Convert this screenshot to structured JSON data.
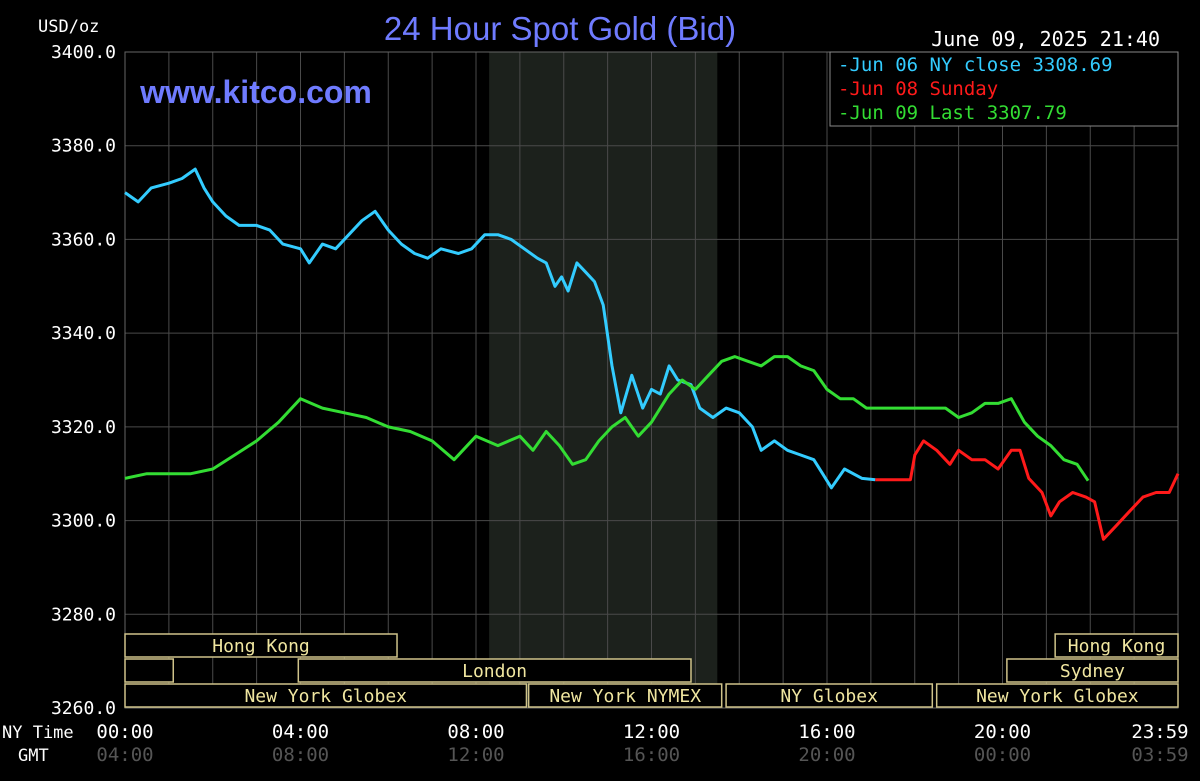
{
  "chart_data": {
    "type": "line",
    "title": "24 Hour Spot Gold (Bid)",
    "watermark": "www.kitco.com",
    "timestamp": "June 09, 2025 21:40",
    "ylabel": "USD/oz",
    "ylim": [
      3260,
      3400
    ],
    "yticks": [
      "3400.0",
      "3380.0",
      "3360.0",
      "3340.0",
      "3320.0",
      "3300.0",
      "3280.0",
      "3260.0"
    ],
    "x_axis_name": "NY Time",
    "x2_axis_name": "GMT",
    "xlim": [
      0,
      24
    ],
    "xticks_ny": [
      "00:00",
      "04:00",
      "08:00",
      "12:00",
      "16:00",
      "20:00",
      "23:59"
    ],
    "xticks_gmt": [
      "04:00",
      "08:00",
      "12:00",
      "16:00",
      "20:00",
      "00:00",
      "03:59"
    ],
    "xtick_hours": [
      0,
      4,
      8,
      12,
      16,
      20,
      24
    ],
    "grid": true,
    "shaded_period": [
      8.3,
      13.5
    ],
    "legend_position": "top-right",
    "series": [
      {
        "name": "Jun 06 NY close 3308.69",
        "color": "#33ccff",
        "points": [
          [
            0,
            3370
          ],
          [
            0.3,
            3368
          ],
          [
            0.6,
            3371
          ],
          [
            1,
            3372
          ],
          [
            1.3,
            3373
          ],
          [
            1.6,
            3375
          ],
          [
            1.8,
            3371
          ],
          [
            2,
            3368
          ],
          [
            2.3,
            3365
          ],
          [
            2.6,
            3363
          ],
          [
            3,
            3363
          ],
          [
            3.3,
            3362
          ],
          [
            3.6,
            3359
          ],
          [
            4,
            3358
          ],
          [
            4.2,
            3355
          ],
          [
            4.5,
            3359
          ],
          [
            4.8,
            3358
          ],
          [
            5.1,
            3361
          ],
          [
            5.4,
            3364
          ],
          [
            5.7,
            3366
          ],
          [
            6,
            3362
          ],
          [
            6.3,
            3359
          ],
          [
            6.6,
            3357
          ],
          [
            6.9,
            3356
          ],
          [
            7.2,
            3358
          ],
          [
            7.6,
            3357
          ],
          [
            7.9,
            3358
          ],
          [
            8.2,
            3361
          ],
          [
            8.5,
            3361
          ],
          [
            8.8,
            3360
          ],
          [
            9.1,
            3358
          ],
          [
            9.4,
            3356
          ],
          [
            9.6,
            3355
          ],
          [
            9.8,
            3350
          ],
          [
            9.95,
            3352
          ],
          [
            10.1,
            3349
          ],
          [
            10.3,
            3355
          ],
          [
            10.5,
            3353
          ],
          [
            10.7,
            3351
          ],
          [
            10.9,
            3346
          ],
          [
            11.1,
            3333
          ],
          [
            11.3,
            3323
          ],
          [
            11.55,
            3331
          ],
          [
            11.8,
            3324
          ],
          [
            12,
            3328
          ],
          [
            12.2,
            3327
          ],
          [
            12.4,
            3333
          ],
          [
            12.6,
            3330
          ],
          [
            12.9,
            3329
          ],
          [
            13.1,
            3324
          ],
          [
            13.4,
            3322
          ],
          [
            13.7,
            3324
          ],
          [
            14,
            3323
          ],
          [
            14.3,
            3320
          ],
          [
            14.5,
            3315
          ],
          [
            14.8,
            3317
          ],
          [
            15.1,
            3315
          ],
          [
            15.4,
            3314
          ],
          [
            15.7,
            3313
          ],
          [
            15.9,
            3310
          ],
          [
            16.1,
            3307
          ],
          [
            16.4,
            3311
          ],
          [
            16.8,
            3309
          ],
          [
            17.1,
            3308.7
          ]
        ]
      },
      {
        "name": "Jun 08 Sunday",
        "color": "#ff1a1a",
        "points": [
          [
            17.1,
            3308.7
          ],
          [
            17.9,
            3308.7
          ],
          [
            18,
            3314
          ],
          [
            18.2,
            3317
          ],
          [
            18.5,
            3315
          ],
          [
            18.8,
            3312
          ],
          [
            19,
            3315
          ],
          [
            19.3,
            3313
          ],
          [
            19.6,
            3313
          ],
          [
            19.9,
            3311
          ],
          [
            20.2,
            3315
          ],
          [
            20.4,
            3315
          ],
          [
            20.6,
            3309
          ],
          [
            20.9,
            3306
          ],
          [
            21.1,
            3301
          ],
          [
            21.3,
            3304
          ],
          [
            21.6,
            3306
          ],
          [
            21.9,
            3305
          ],
          [
            22.1,
            3304
          ],
          [
            22.3,
            3296
          ],
          [
            22.6,
            3299
          ],
          [
            22.9,
            3302
          ],
          [
            23.2,
            3305
          ],
          [
            23.5,
            3306
          ],
          [
            23.8,
            3306
          ],
          [
            24,
            3310
          ]
        ]
      },
      {
        "name": "Jun 09 Last 3307.79",
        "color": "#33dd33",
        "points": [
          [
            0,
            3309
          ],
          [
            0.5,
            3310
          ],
          [
            1,
            3310
          ],
          [
            1.5,
            3310
          ],
          [
            2,
            3311
          ],
          [
            2.5,
            3314
          ],
          [
            3,
            3317
          ],
          [
            3.5,
            3321
          ],
          [
            4,
            3326
          ],
          [
            4.5,
            3324
          ],
          [
            5,
            3323
          ],
          [
            5.5,
            3322
          ],
          [
            6,
            3320
          ],
          [
            6.5,
            3319
          ],
          [
            7,
            3317
          ],
          [
            7.5,
            3313
          ],
          [
            8,
            3318
          ],
          [
            8.5,
            3316
          ],
          [
            9,
            3318
          ],
          [
            9.3,
            3315
          ],
          [
            9.6,
            3319
          ],
          [
            9.9,
            3316
          ],
          [
            10.2,
            3312
          ],
          [
            10.5,
            3313
          ],
          [
            10.8,
            3317
          ],
          [
            11.1,
            3320
          ],
          [
            11.4,
            3322
          ],
          [
            11.7,
            3318
          ],
          [
            12,
            3321
          ],
          [
            12.4,
            3327
          ],
          [
            12.7,
            3330
          ],
          [
            13,
            3328
          ],
          [
            13.3,
            3331
          ],
          [
            13.6,
            3334
          ],
          [
            13.9,
            3335
          ],
          [
            14.2,
            3334
          ],
          [
            14.5,
            3333
          ],
          [
            14.8,
            3335
          ],
          [
            15.1,
            3335
          ],
          [
            15.4,
            3333
          ],
          [
            15.7,
            3332
          ],
          [
            16,
            3328
          ],
          [
            16.3,
            3326
          ],
          [
            16.6,
            3326
          ],
          [
            16.9,
            3324
          ],
          [
            17.2,
            3324
          ],
          [
            17.5,
            3324
          ],
          [
            17.8,
            3324
          ],
          [
            18.1,
            3324
          ],
          [
            18.4,
            3324
          ],
          [
            18.7,
            3324
          ],
          [
            19,
            3322
          ],
          [
            19.3,
            3323
          ],
          [
            19.6,
            3325
          ],
          [
            19.9,
            3325
          ],
          [
            20.2,
            3326
          ],
          [
            20.5,
            3321
          ],
          [
            20.8,
            3318
          ],
          [
            21.1,
            3316
          ],
          [
            21.4,
            3313
          ],
          [
            21.7,
            3312
          ],
          [
            21.95,
            3308.5
          ]
        ]
      }
    ],
    "sessions": [
      {
        "label": "Hong Kong",
        "row": 0,
        "start": 0,
        "end": 6.2
      },
      {
        "label": "Hong Kong",
        "row": 0,
        "start": 21.2,
        "end": 24
      },
      {
        "label": "",
        "row": 1,
        "start": 0,
        "end": 1.1
      },
      {
        "label": "London",
        "row": 1,
        "start": 3.95,
        "end": 12.9
      },
      {
        "label": "Sydney",
        "row": 1,
        "start": 20.1,
        "end": 24
      },
      {
        "label": "New York Globex",
        "row": 2,
        "start": 0,
        "end": 9.15
      },
      {
        "label": "New York NYMEX",
        "row": 2,
        "start": 9.2,
        "end": 13.6
      },
      {
        "label": "NY Globex",
        "row": 2,
        "start": 13.7,
        "end": 18.4
      },
      {
        "label": "New York Globex",
        "row": 2,
        "start": 18.5,
        "end": 24
      }
    ]
  }
}
